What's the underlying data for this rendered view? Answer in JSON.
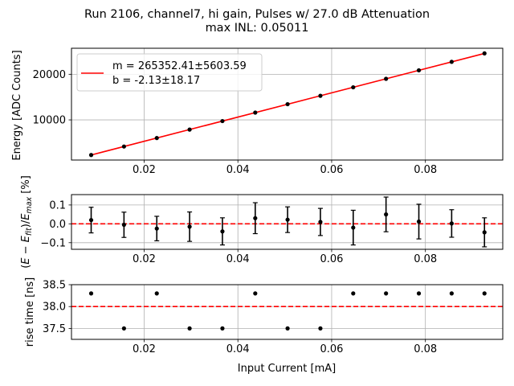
{
  "figure": {
    "title_line1": "Run 2106, channel7, hi gain, Pulses w/ 27.0 dB Attenuation",
    "title_line2": "max INL: 0.05011"
  },
  "colors": {
    "fit": "#ff0000",
    "data": "#000000",
    "grid": "#b0b0b0"
  },
  "chart_data": [
    {
      "type": "scatter",
      "name": "energy",
      "xlabel": "",
      "ylabel": "Energy [ADC Counts]",
      "xlim": [
        0.0045,
        0.0965
      ],
      "ylim": [
        1200,
        25700
      ],
      "xticks": [
        0.02,
        0.04,
        0.06,
        0.08
      ],
      "xtick_labels": [
        "0.02",
        "0.04",
        "0.06",
        "0.08"
      ],
      "yticks": [
        10000,
        20000
      ],
      "ytick_labels": [
        "10000",
        "20000"
      ],
      "grid": true,
      "legend_position": "top-left",
      "legend": [
        {
          "line1": "m = 265352.41±5603.59",
          "line2": "b = -2.13±18.17"
        }
      ],
      "fit": {
        "slope": 265352.41,
        "intercept": -2.13
      },
      "x": [
        0.0087,
        0.0157,
        0.0227,
        0.0297,
        0.0367,
        0.0437,
        0.0506,
        0.0576,
        0.0646,
        0.0716,
        0.0786,
        0.0856,
        0.0926
      ],
      "y": [
        2300,
        4160,
        6020,
        7880,
        9740,
        11600,
        13440,
        15280,
        17140,
        19000,
        20860,
        22720,
        24580
      ]
    },
    {
      "type": "scatter",
      "name": "residual",
      "xlabel": "",
      "ylabel_prefix": "(",
      "ylabel_E1": "E",
      "ylabel_mid": " − ",
      "ylabel_E2": "E",
      "ylabel_sub_fit": "fit",
      "ylabel_slash": ")/",
      "ylabel_E3": "E",
      "ylabel_sub_max": "max",
      "ylabel_suffix": " [%]",
      "xlim": [
        0.0045,
        0.0965
      ],
      "ylim": [
        -0.135,
        0.155
      ],
      "xticks": [
        0.02,
        0.04,
        0.06,
        0.08
      ],
      "xtick_labels": [
        "0.02",
        "0.04",
        "0.06",
        "0.08"
      ],
      "yticks": [
        -0.1,
        0.0,
        0.1
      ],
      "ytick_labels": [
        "−0.1",
        "0.0",
        "0.1"
      ],
      "reference_line": 0.0,
      "grid": true,
      "x": [
        0.0087,
        0.0157,
        0.0227,
        0.0297,
        0.0367,
        0.0437,
        0.0506,
        0.0576,
        0.0646,
        0.0716,
        0.0786,
        0.0856,
        0.0926
      ],
      "y": [
        0.02,
        -0.005,
        -0.025,
        -0.015,
        -0.04,
        0.03,
        0.022,
        0.01,
        -0.02,
        0.05,
        0.012,
        0.002,
        -0.045
      ],
      "yerr": [
        0.068,
        0.067,
        0.065,
        0.078,
        0.072,
        0.082,
        0.068,
        0.072,
        0.092,
        0.092,
        0.092,
        0.073,
        0.077
      ]
    },
    {
      "type": "scatter",
      "name": "risetime",
      "xlabel": "Input Current [mA]",
      "ylabel": "rise time [ns]",
      "xlim": [
        0.0045,
        0.0965
      ],
      "ylim": [
        37.25,
        38.5
      ],
      "xticks": [
        0.02,
        0.04,
        0.06,
        0.08
      ],
      "xtick_labels": [
        "0.02",
        "0.04",
        "0.06",
        "0.08"
      ],
      "yticks": [
        37.5,
        38.0,
        38.5
      ],
      "ytick_labels": [
        "37.5",
        "38.0",
        "38.5"
      ],
      "reference_line": 38.0,
      "grid": true,
      "x": [
        0.0087,
        0.0157,
        0.0227,
        0.0297,
        0.0367,
        0.0437,
        0.0506,
        0.0576,
        0.0646,
        0.0716,
        0.0786,
        0.0856,
        0.0926
      ],
      "y": [
        38.3,
        37.5,
        38.3,
        37.5,
        37.5,
        38.3,
        37.5,
        37.5,
        38.3,
        38.3,
        38.3,
        38.3,
        38.3
      ]
    }
  ]
}
